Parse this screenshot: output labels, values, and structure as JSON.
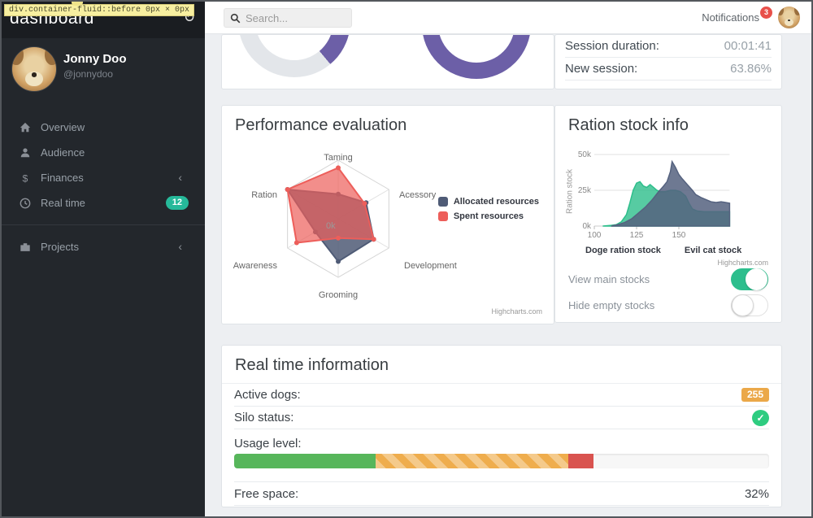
{
  "inspector_tooltip": {
    "selector": "div.container-fluid::before",
    "dims": "0px × 0px"
  },
  "sidebar": {
    "brand": "dashboard",
    "user": {
      "name": "Jonny Doo",
      "handle": "@jonnydoo"
    },
    "items": [
      {
        "label": "Overview",
        "icon": "home-icon"
      },
      {
        "label": "Audience",
        "icon": "user-icon"
      },
      {
        "label": "Finances",
        "icon": "dollar-icon",
        "chevron": "‹"
      },
      {
        "label": "Real time",
        "icon": "clock-icon",
        "badge": "12"
      },
      {
        "label": "Projects",
        "icon": "briefcase-icon",
        "chevron": "‹"
      }
    ]
  },
  "topbar": {
    "search_placeholder": "Search...",
    "notifications_label": "Notifications",
    "notifications_count": "3"
  },
  "session_card": {
    "rows": [
      {
        "label": "Session duration:",
        "value": "00:01:41"
      },
      {
        "label": "New session:",
        "value": "63.86%"
      }
    ]
  },
  "titles": {
    "performance": "Performance evaluation",
    "ration": "Ration stock info",
    "realtime": "Real time information"
  },
  "credits": "Highcharts.com",
  "toggles": [
    {
      "label": "View main stocks",
      "on": true
    },
    {
      "label": "Hide empty stocks",
      "on": false
    }
  ],
  "realtime": {
    "rows": {
      "active_dogs": {
        "label": "Active dogs:",
        "badge": "255"
      },
      "silo": {
        "label": "Silo status:",
        "status": "check"
      },
      "usage": {
        "label": "Usage level:"
      },
      "free": {
        "label": "Free space:",
        "value": "32%"
      }
    },
    "usage_segments": [
      {
        "color": "#57b65b",
        "pct": 26.5,
        "striped": false
      },
      {
        "color": "#efad4d",
        "pct": 36,
        "striped": true
      },
      {
        "color": "#d9534f",
        "pct": 4.7,
        "striped": false
      }
    ]
  },
  "chart_data": [
    {
      "id": "donut-left",
      "type": "pie",
      "inner_radius_pct": 70,
      "note": "partially visible sessions donut",
      "segments": [
        {
          "label": "track",
          "color": "#e3e6ea",
          "start_deg": 0,
          "end_deg": 60
        },
        {
          "label": "filled",
          "color": "#6c5fa7",
          "start_deg": 60,
          "end_deg": 140
        },
        {
          "label": "track",
          "color": "#e3e6ea",
          "start_deg": 140,
          "end_deg": 360
        }
      ]
    },
    {
      "id": "donut-right",
      "type": "pie",
      "inner_radius_pct": 70,
      "note": "partially visible sessions donut, fully filled",
      "segments": [
        {
          "label": "filled",
          "color": "#6c5fa7",
          "start_deg": 0,
          "end_deg": 360
        }
      ]
    },
    {
      "id": "radar",
      "type": "radar",
      "title": "Performance evaluation",
      "axes": [
        "Taming",
        "Acessory",
        "Development",
        "Grooming",
        "Awareness",
        "Ration"
      ],
      "max": 100,
      "center_label": "0k",
      "legend_position": "right",
      "series": [
        {
          "name": "Allocated resources",
          "color": "#4f5b76",
          "fill_opacity": 0.85,
          "values": [
            42,
            55,
            70,
            73,
            45,
            100
          ]
        },
        {
          "name": "Spent resources",
          "color": "#ed5e5a",
          "fill_opacity": 0.7,
          "values": [
            87,
            52,
            70,
            33,
            82,
            100
          ]
        }
      ]
    },
    {
      "id": "area",
      "type": "area",
      "title": "Ration stock info",
      "ylabel": "Ration stock",
      "ylim": [
        0,
        50
      ],
      "yticks": [
        "0k",
        "25k",
        "50k"
      ],
      "xlim": [
        100,
        180
      ],
      "xticks": [
        100,
        125,
        150
      ],
      "grid": true,
      "legend_position": "bottom",
      "series": [
        {
          "name": "Doge ration stock",
          "color": "#2dbe8b",
          "fill_opacity": 0.8,
          "points": [
            [
              105,
              0
            ],
            [
              110,
              0.5
            ],
            [
              113,
              1
            ],
            [
              116,
              3
            ],
            [
              119,
              8
            ],
            [
              121,
              16
            ],
            [
              123,
              25
            ],
            [
              125,
              30
            ],
            [
              127,
              31
            ],
            [
              129,
              28
            ],
            [
              131,
              27
            ],
            [
              133,
              29
            ],
            [
              135,
              27
            ],
            [
              137,
              25
            ],
            [
              139,
              24
            ],
            [
              142,
              24
            ],
            [
              145,
              25
            ],
            [
              148,
              25
            ],
            [
              151,
              24
            ],
            [
              154,
              21
            ],
            [
              156,
              16
            ],
            [
              158,
              12
            ],
            [
              161,
              10.5
            ],
            [
              165,
              10
            ],
            [
              170,
              10
            ],
            [
              175,
              10
            ],
            [
              180,
              10
            ]
          ]
        },
        {
          "name": "Evil cat stock",
          "color": "#55627f",
          "fill_opacity": 0.85,
          "points": [
            [
              110,
              0
            ],
            [
              114,
              1
            ],
            [
              118,
              2.5
            ],
            [
              122,
              5
            ],
            [
              126,
              9
            ],
            [
              130,
              13
            ],
            [
              134,
              18
            ],
            [
              138,
              24
            ],
            [
              141,
              28
            ],
            [
              143,
              31
            ],
            [
              145,
              38
            ],
            [
              146,
              45
            ],
            [
              148,
              41
            ],
            [
              150,
              36
            ],
            [
              152,
              33
            ],
            [
              155,
              29
            ],
            [
              158,
              25
            ],
            [
              160,
              22
            ],
            [
              163,
              20
            ],
            [
              166,
              18.5
            ],
            [
              169,
              17
            ],
            [
              172,
              16.5
            ],
            [
              175,
              17
            ],
            [
              180,
              16
            ]
          ]
        }
      ]
    }
  ]
}
